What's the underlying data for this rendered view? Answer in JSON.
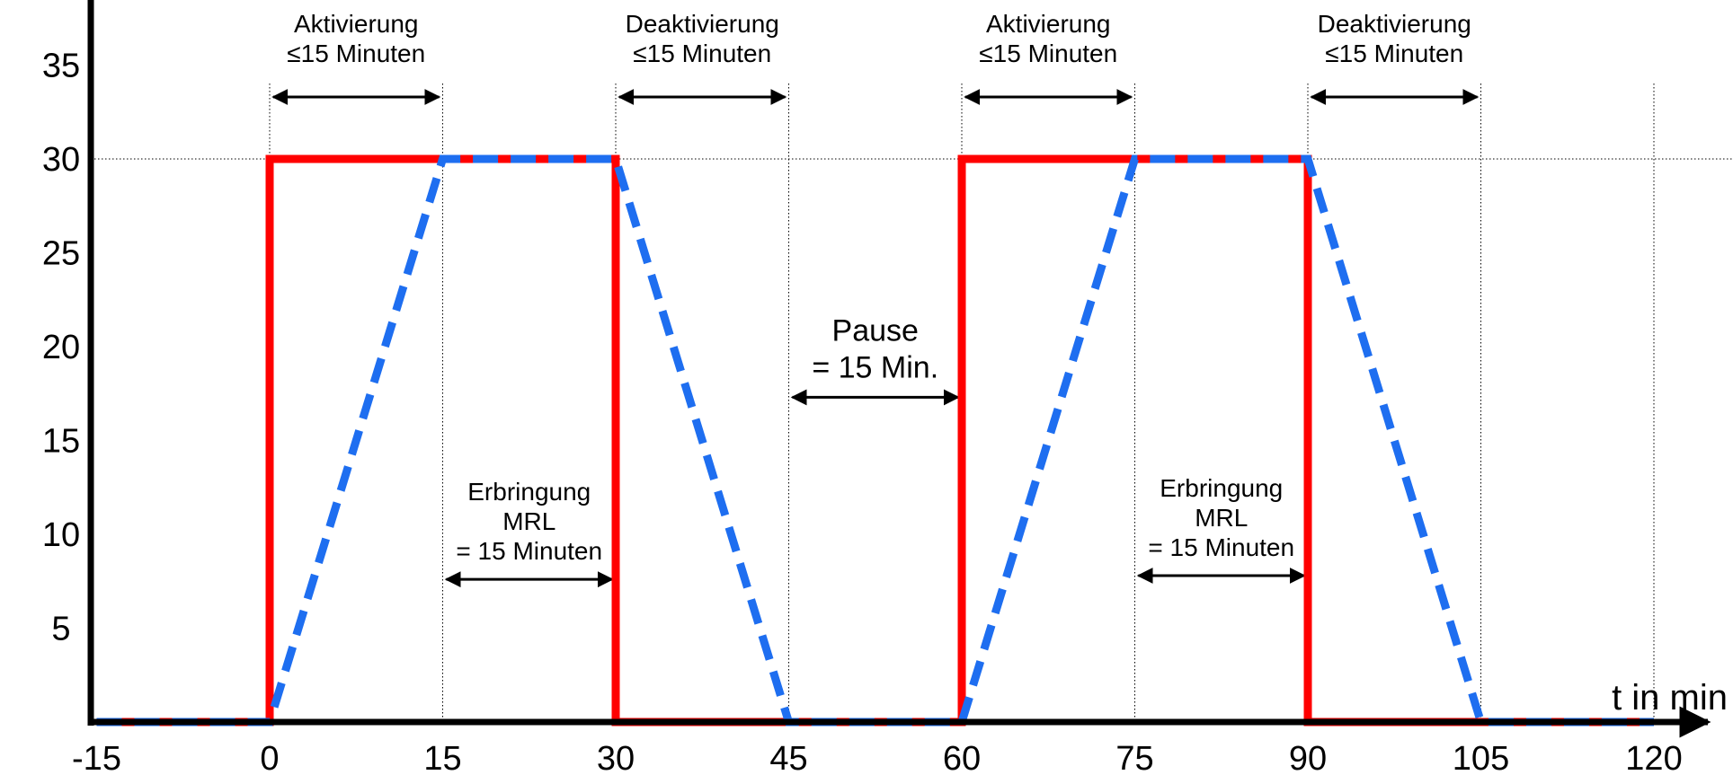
{
  "chart_data": {
    "type": "line",
    "title": "",
    "xlabel": "t in min",
    "ylabel": "",
    "xlim": [
      -15,
      125
    ],
    "ylim": [
      0,
      38
    ],
    "x_ticks": [
      -15,
      0,
      15,
      30,
      45,
      60,
      75,
      90,
      105,
      120
    ],
    "x_tick_labels": [
      "-15",
      "0",
      "15",
      "30",
      "45",
      "60",
      "75",
      "90",
      "105",
      "120"
    ],
    "y_ticks": [
      5,
      10,
      15,
      20,
      25,
      30,
      35
    ],
    "y_tick_labels": [
      "5",
      "10",
      "15",
      "20",
      "25",
      "30",
      "35"
    ],
    "vertical_gridlines_at": [
      0,
      15,
      30,
      45,
      60,
      75,
      90,
      105,
      120
    ],
    "horizontal_gridline_at": 30,
    "colors": {
      "solid": "#ff0000",
      "dashed": "#1e6ef0",
      "axis": "#000000",
      "grid": "#000000"
    },
    "series": [
      {
        "style": "solid",
        "x": [
          -15,
          0,
          0,
          30,
          30,
          60,
          60,
          90,
          90,
          120
        ],
        "y": [
          0,
          0,
          30,
          30,
          0,
          0,
          30,
          30,
          0,
          0
        ]
      },
      {
        "style": "dashed",
        "x": [
          -15,
          0,
          15,
          30,
          45,
          60,
          75,
          90,
          105,
          120
        ],
        "y": [
          0,
          0,
          30,
          30,
          0,
          0,
          30,
          30,
          0,
          0
        ]
      }
    ],
    "annotations": [
      {
        "lines": [
          "Aktivierung",
          "≤15 Minuten"
        ],
        "from": 0,
        "to": 15,
        "arrow_y": 33.3
      },
      {
        "lines": [
          "Deaktivierung",
          "≤15 Minuten"
        ],
        "from": 30,
        "to": 45,
        "arrow_y": 33.3
      },
      {
        "lines": [
          "Aktivierung",
          "≤15 Minuten"
        ],
        "from": 60,
        "to": 75,
        "arrow_y": 33.3
      },
      {
        "lines": [
          "Deaktivierung",
          "≤15 Minuten"
        ],
        "from": 90,
        "to": 105,
        "arrow_y": 33.3
      },
      {
        "lines": [
          "Erbringung",
          "MRL",
          "= 15 Minuten"
        ],
        "from": 15,
        "to": 30,
        "arrow_y": 7.6
      },
      {
        "lines": [
          "Erbringung",
          "MRL",
          "= 15 Minuten"
        ],
        "from": 75,
        "to": 90,
        "arrow_y": 7.8
      },
      {
        "lines": [
          "Pause",
          "= 15 Min."
        ],
        "from": 45,
        "to": 60,
        "arrow_y": 17.3
      }
    ]
  }
}
